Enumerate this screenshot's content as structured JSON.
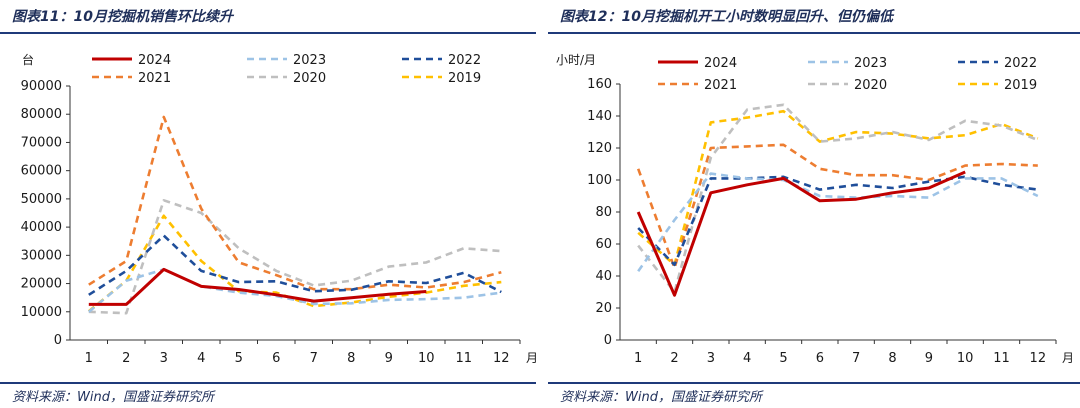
{
  "chart_data": [
    {
      "type": "line",
      "title": "图表11：10月挖掘机销售环比续升",
      "ylabel": "台",
      "xlabel": "月",
      "ylim": [
        0,
        90000
      ],
      "yticks": [
        0,
        10000,
        20000,
        30000,
        40000,
        50000,
        60000,
        70000,
        80000,
        90000
      ],
      "ytick_labels": [
        "0",
        "10000",
        "20000",
        "30000",
        "40000",
        "50000",
        "60000",
        "70000",
        "80000",
        "90000"
      ],
      "categories": [
        "1",
        "2",
        "3",
        "4",
        "5",
        "6",
        "7",
        "8",
        "9",
        "10",
        "11",
        "12"
      ],
      "legend_position": "top",
      "grid": false,
      "source": "资料来源：Wind，国盛证券研究所",
      "series": [
        {
          "name": "2024",
          "color": "#c00000",
          "dash": "solid",
          "values": [
            12600,
            12600,
            25000,
            19000,
            17900,
            16000,
            13800,
            15000,
            16200,
            17200,
            null,
            null
          ]
        },
        {
          "name": "2023",
          "color": "#9dc3e6",
          "dash": "dash",
          "values": [
            10000,
            21000,
            25000,
            19000,
            16800,
            15600,
            12800,
            13000,
            14200,
            14500,
            15000,
            16800
          ]
        },
        {
          "name": "2022",
          "color": "#1f4e9a",
          "dash": "dash",
          "values": [
            16000,
            24500,
            37000,
            24500,
            20500,
            20800,
            17300,
            17800,
            20800,
            20200,
            23800,
            17000
          ]
        },
        {
          "name": "2021",
          "color": "#ed7d31",
          "dash": "dash",
          "values": [
            19600,
            28000,
            79000,
            46500,
            27500,
            23000,
            18000,
            18000,
            19600,
            18600,
            20500,
            24000
          ]
        },
        {
          "name": "2020",
          "color": "#bfbfbf",
          "dash": "dash",
          "values": [
            10000,
            9500,
            49500,
            45000,
            32500,
            24500,
            19300,
            21000,
            26000,
            27500,
            32500,
            31500
          ]
        },
        {
          "name": "2019",
          "color": "#ffc000",
          "dash": "dash",
          "values": [
            10200,
            21000,
            44000,
            28000,
            17300,
            16800,
            12000,
            13300,
            15300,
            16800,
            19200,
            20500
          ]
        }
      ]
    },
    {
      "type": "line",
      "title": "图表12：10月挖掘机开工小时数明显回升、但仍偏低",
      "ylabel": "小时/月",
      "xlabel": "月",
      "ylim": [
        0,
        160
      ],
      "yticks": [
        0,
        20,
        40,
        60,
        80,
        100,
        120,
        140,
        160
      ],
      "ytick_labels": [
        "0",
        "20",
        "40",
        "60",
        "80",
        "100",
        "120",
        "140",
        "160"
      ],
      "categories": [
        "1",
        "2",
        "3",
        "4",
        "5",
        "6",
        "7",
        "8",
        "9",
        "10",
        "11",
        "12"
      ],
      "legend_position": "top",
      "grid": false,
      "source": "资料来源：Wind，国盛证券研究所",
      "series": [
        {
          "name": "2024",
          "color": "#c00000",
          "dash": "solid",
          "values": [
            80,
            28,
            92,
            97,
            101,
            87,
            88,
            92,
            95,
            105,
            null,
            null
          ]
        },
        {
          "name": "2023",
          "color": "#9dc3e6",
          "dash": "dash",
          "values": [
            43,
            75,
            104,
            101,
            100,
            90,
            89,
            90,
            89,
            101,
            101,
            90
          ]
        },
        {
          "name": "2022",
          "color": "#1f4e9a",
          "dash": "dash",
          "values": [
            70,
            47,
            101,
            101,
            102,
            94,
            97,
            95,
            99,
            102,
            97,
            94
          ]
        },
        {
          "name": "2021",
          "color": "#ed7d31",
          "dash": "dash",
          "values": [
            107,
            45,
            120,
            121,
            122,
            107,
            103,
            103,
            100,
            109,
            110,
            109
          ]
        },
        {
          "name": "2020",
          "color": "#bfbfbf",
          "dash": "dash",
          "values": [
            59,
            30,
            114,
            144,
            147,
            124,
            126,
            130,
            125,
            137,
            134,
            125
          ]
        },
        {
          "name": "2019",
          "color": "#ffc000",
          "dash": "dash",
          "values": [
            67,
            47,
            136,
            139,
            143,
            124,
            130,
            129,
            126,
            128,
            135,
            126
          ]
        }
      ]
    }
  ]
}
